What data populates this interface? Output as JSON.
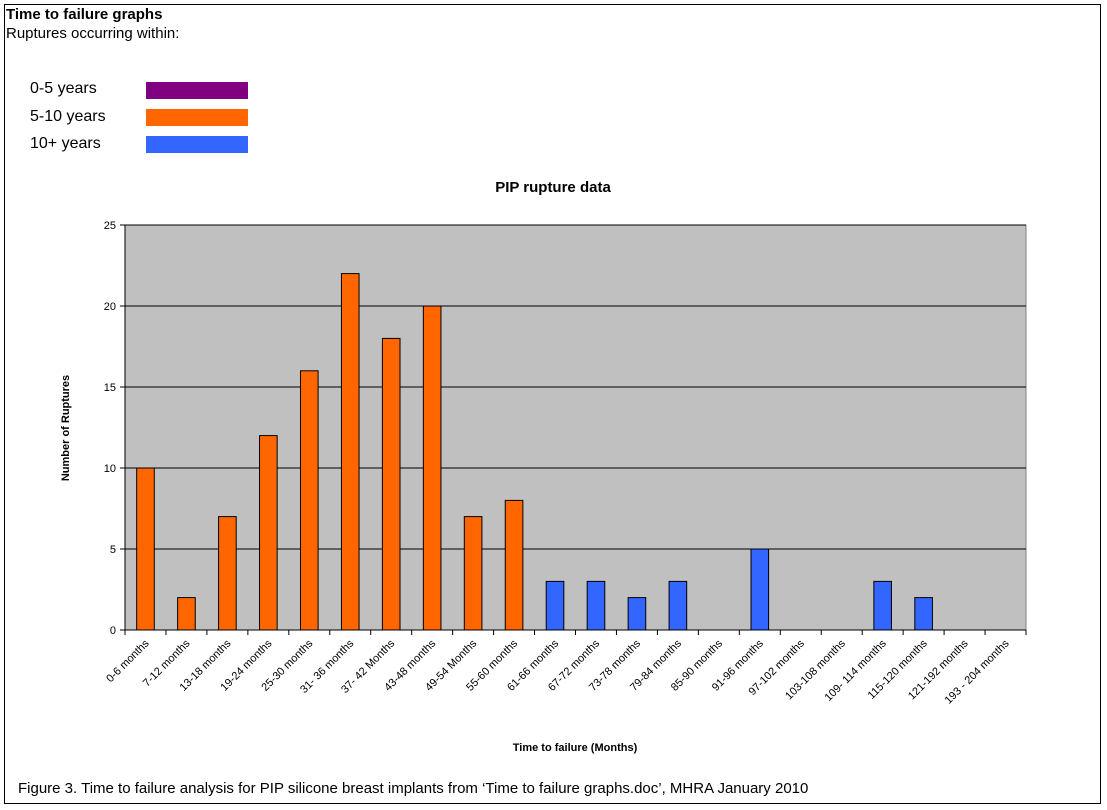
{
  "header": {
    "title": "Time to failure graphs",
    "subtitle": "Ruptures occurring within:"
  },
  "legend": [
    {
      "label": "0-5 years",
      "color": "#800080"
    },
    {
      "label": "5-10 years",
      "color": "#FF6600"
    },
    {
      "label": "10+ years",
      "color": "#3366FF"
    }
  ],
  "caption": "Figure 3. Time to failure analysis for PIP silicone breast implants from ‘Time to failure graphs.doc’, MHRA January 2010",
  "chart_data": {
    "type": "bar",
    "title": "PIP rupture data",
    "xlabel": "Time to failure (Months)",
    "ylabel": "Number of Ruptures",
    "ylim": [
      0,
      25
    ],
    "yticks": [
      0,
      5,
      10,
      15,
      20,
      25
    ],
    "grid": true,
    "categories": [
      "0-6 months",
      "7-12 months",
      "13-18 months",
      "19-24 months",
      "25-30 months",
      "31- 36 months",
      "37- 42 Months",
      "43-48 months",
      "49-54 Months",
      "55-60 months",
      "61-66 months",
      "67-72 months",
      "73-78 months",
      "79-84 months",
      "85-90 months",
      "91-96 months",
      "97-102 months",
      "103-108 months",
      "109- 114 months",
      "115-120 months",
      "121-192 months",
      "193 - 204 months"
    ],
    "values": [
      10,
      2,
      7,
      12,
      16,
      22,
      18,
      20,
      7,
      8,
      3,
      3,
      2,
      3,
      0,
      5,
      0,
      0,
      3,
      2,
      0,
      0
    ],
    "bar_colors": [
      "#FF6600",
      "#FF6600",
      "#FF6600",
      "#FF6600",
      "#FF6600",
      "#FF6600",
      "#FF6600",
      "#FF6600",
      "#FF6600",
      "#FF6600",
      "#3366FF",
      "#3366FF",
      "#3366FF",
      "#3366FF",
      "#3366FF",
      "#3366FF",
      "#3366FF",
      "#3366FF",
      "#3366FF",
      "#3366FF",
      "#3366FF",
      "#3366FF"
    ],
    "plot_background": "#C0C0C0"
  }
}
